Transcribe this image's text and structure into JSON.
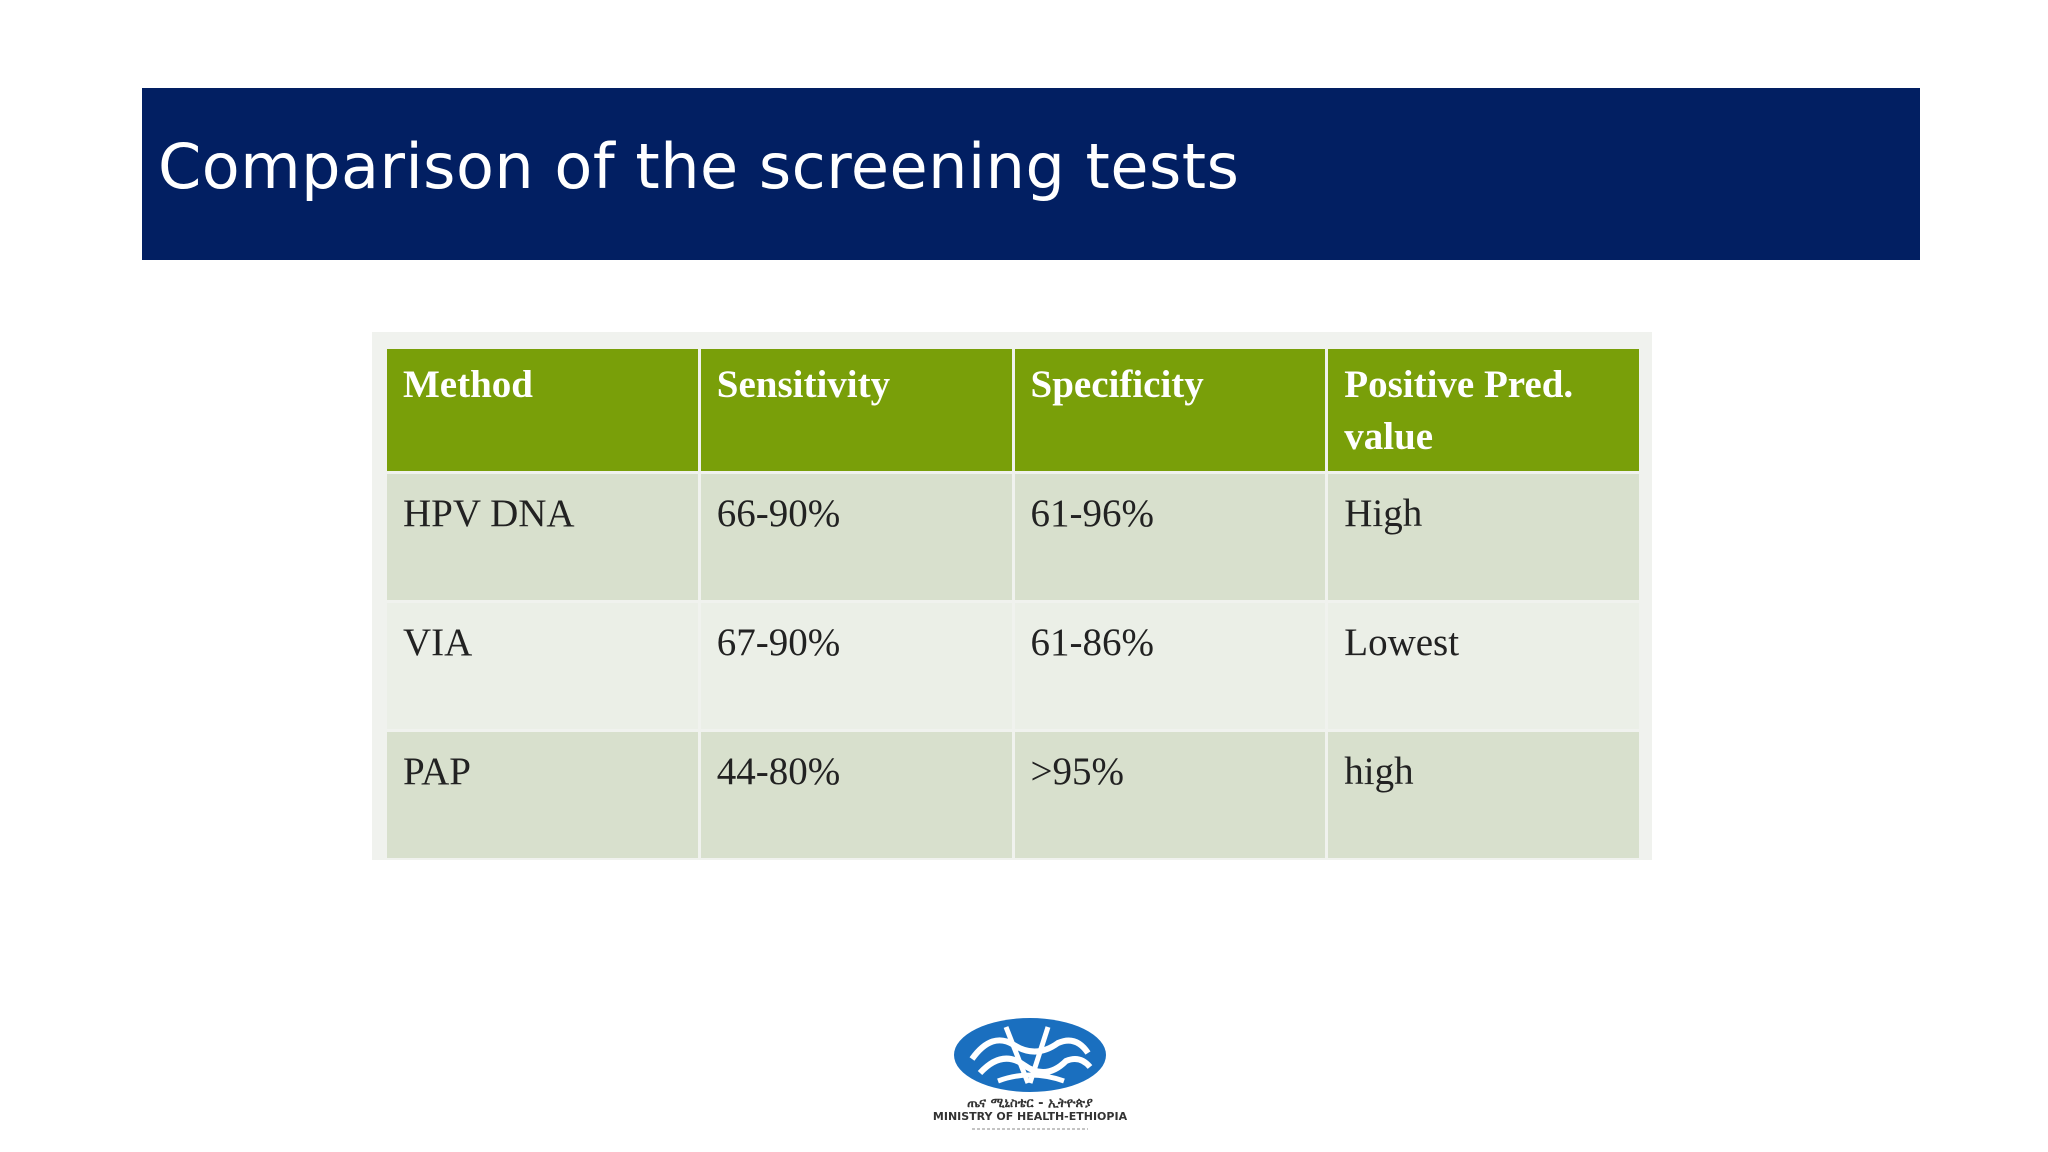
{
  "slide": {
    "title": "Comparison of the screening tests"
  },
  "table": {
    "headers": [
      "Method",
      "Sensitivity",
      "Specificity",
      "Positive Pred. value"
    ],
    "rows": [
      [
        "HPV DNA",
        "66-90%",
        "61-96%",
        "High"
      ],
      [
        "VIA",
        "67-90%",
        "61-86%",
        "Lowest"
      ],
      [
        "PAP",
        "44-80%",
        ">95%",
        "high"
      ]
    ]
  },
  "logo": {
    "text_amharic": "ጤና ሚኒስቴር - ኢትዮጵያ",
    "text_english": "MINISTRY OF HEALTH-ETHIOPIA",
    "color": "#1a6fbf"
  },
  "colors": {
    "title_bar": "#021f62",
    "table_header": "#799f09",
    "row_dark": "#d8e0cd",
    "row_light": "#ebefe7"
  }
}
